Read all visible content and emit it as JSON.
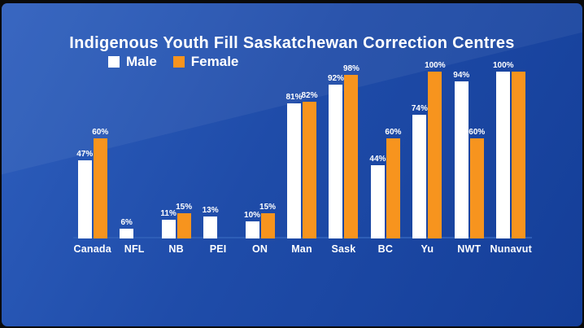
{
  "frame": {
    "background": "#0a0a0a"
  },
  "slide": {
    "bg_gradient_start": "#2e5fbe",
    "bg_gradient_mid": "#1f4ca9",
    "bg_gradient_end": "#143e98",
    "baseline_color": "#2e5eb7",
    "text_color": "#ffffff"
  },
  "chart_data": {
    "type": "bar",
    "title": "Indigenous Youth Fill Saskatchewan Correction Centres",
    "categories": [
      "Canada",
      "NFL",
      "NB",
      "PEI",
      "ON",
      "Man",
      "Sask",
      "BC",
      "Yu",
      "NWT",
      "Nunavut"
    ],
    "series": [
      {
        "name": "Male",
        "color": "#ffffff",
        "values": [
          47,
          6,
          11,
          13,
          10,
          81,
          92,
          44,
          74,
          94,
          100
        ],
        "labels": [
          "47%",
          "6%",
          "11%",
          "13%",
          "10%",
          "81%",
          "92%",
          "44%",
          "74%",
          "94%",
          "100%"
        ]
      },
      {
        "name": "Female",
        "color": "#f7941e",
        "values": [
          60,
          null,
          15,
          null,
          15,
          82,
          98,
          60,
          100,
          60,
          100
        ],
        "labels": [
          "60%",
          "",
          "15%",
          "",
          "15%",
          "82%",
          "98%",
          "60%",
          "100%",
          "60%",
          ""
        ]
      }
    ],
    "value_suffix": "%",
    "ylim": [
      0,
      100
    ],
    "grid": false,
    "legend_position": "top-left",
    "x_axis_line": true,
    "y_axis": false
  }
}
